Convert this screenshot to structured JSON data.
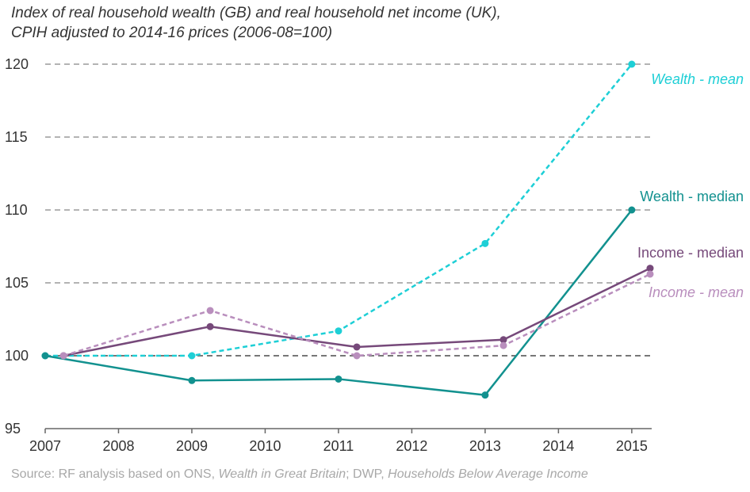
{
  "title_line1": "Index of real household wealth (GB) and real household net income (UK),",
  "title_line2": "CPIH adjusted to 2014-16 prices (2006-08=100)",
  "source": {
    "prefix": "Source: RF analysis based on ONS, ",
    "italic1": "Wealth in Great Britain",
    "middle": "; DWP, ",
    "italic2": "Households Below Average Income"
  },
  "chart_data": {
    "type": "line",
    "x_ticks": [
      "2007",
      "2008",
      "2009",
      "2010",
      "2011",
      "2012",
      "2013",
      "2014",
      "2015"
    ],
    "xlim": [
      2007,
      2015.25
    ],
    "y_ticks": [
      95,
      100,
      105,
      110,
      115,
      120
    ],
    "ylim": [
      95,
      120
    ],
    "grid": "horizontal dashed",
    "series": [
      {
        "name": "Wealth - mean",
        "color": "#1ECFD6",
        "style": "dashed",
        "x": [
          2007,
          2009,
          2011,
          2013,
          2015
        ],
        "y": [
          100,
          100,
          101.7,
          107.7,
          120
        ]
      },
      {
        "name": "Wealth - median",
        "color": "#12918F",
        "style": "solid",
        "x": [
          2007,
          2009,
          2011,
          2013,
          2015
        ],
        "y": [
          100,
          98.3,
          98.4,
          97.3,
          110
        ]
      },
      {
        "name": "Income - median",
        "color": "#76497A",
        "style": "solid",
        "x": [
          2007.25,
          2009.25,
          2011.25,
          2013.25,
          2015.25
        ],
        "y": [
          100,
          102,
          100.6,
          101.1,
          106
        ]
      },
      {
        "name": "Income - mean",
        "color": "#B98EBD",
        "style": "dashed",
        "x": [
          2007.25,
          2009.25,
          2011.25,
          2013.25,
          2015.25
        ],
        "y": [
          100,
          103.1,
          100,
          100.7,
          105.6
        ]
      }
    ]
  }
}
